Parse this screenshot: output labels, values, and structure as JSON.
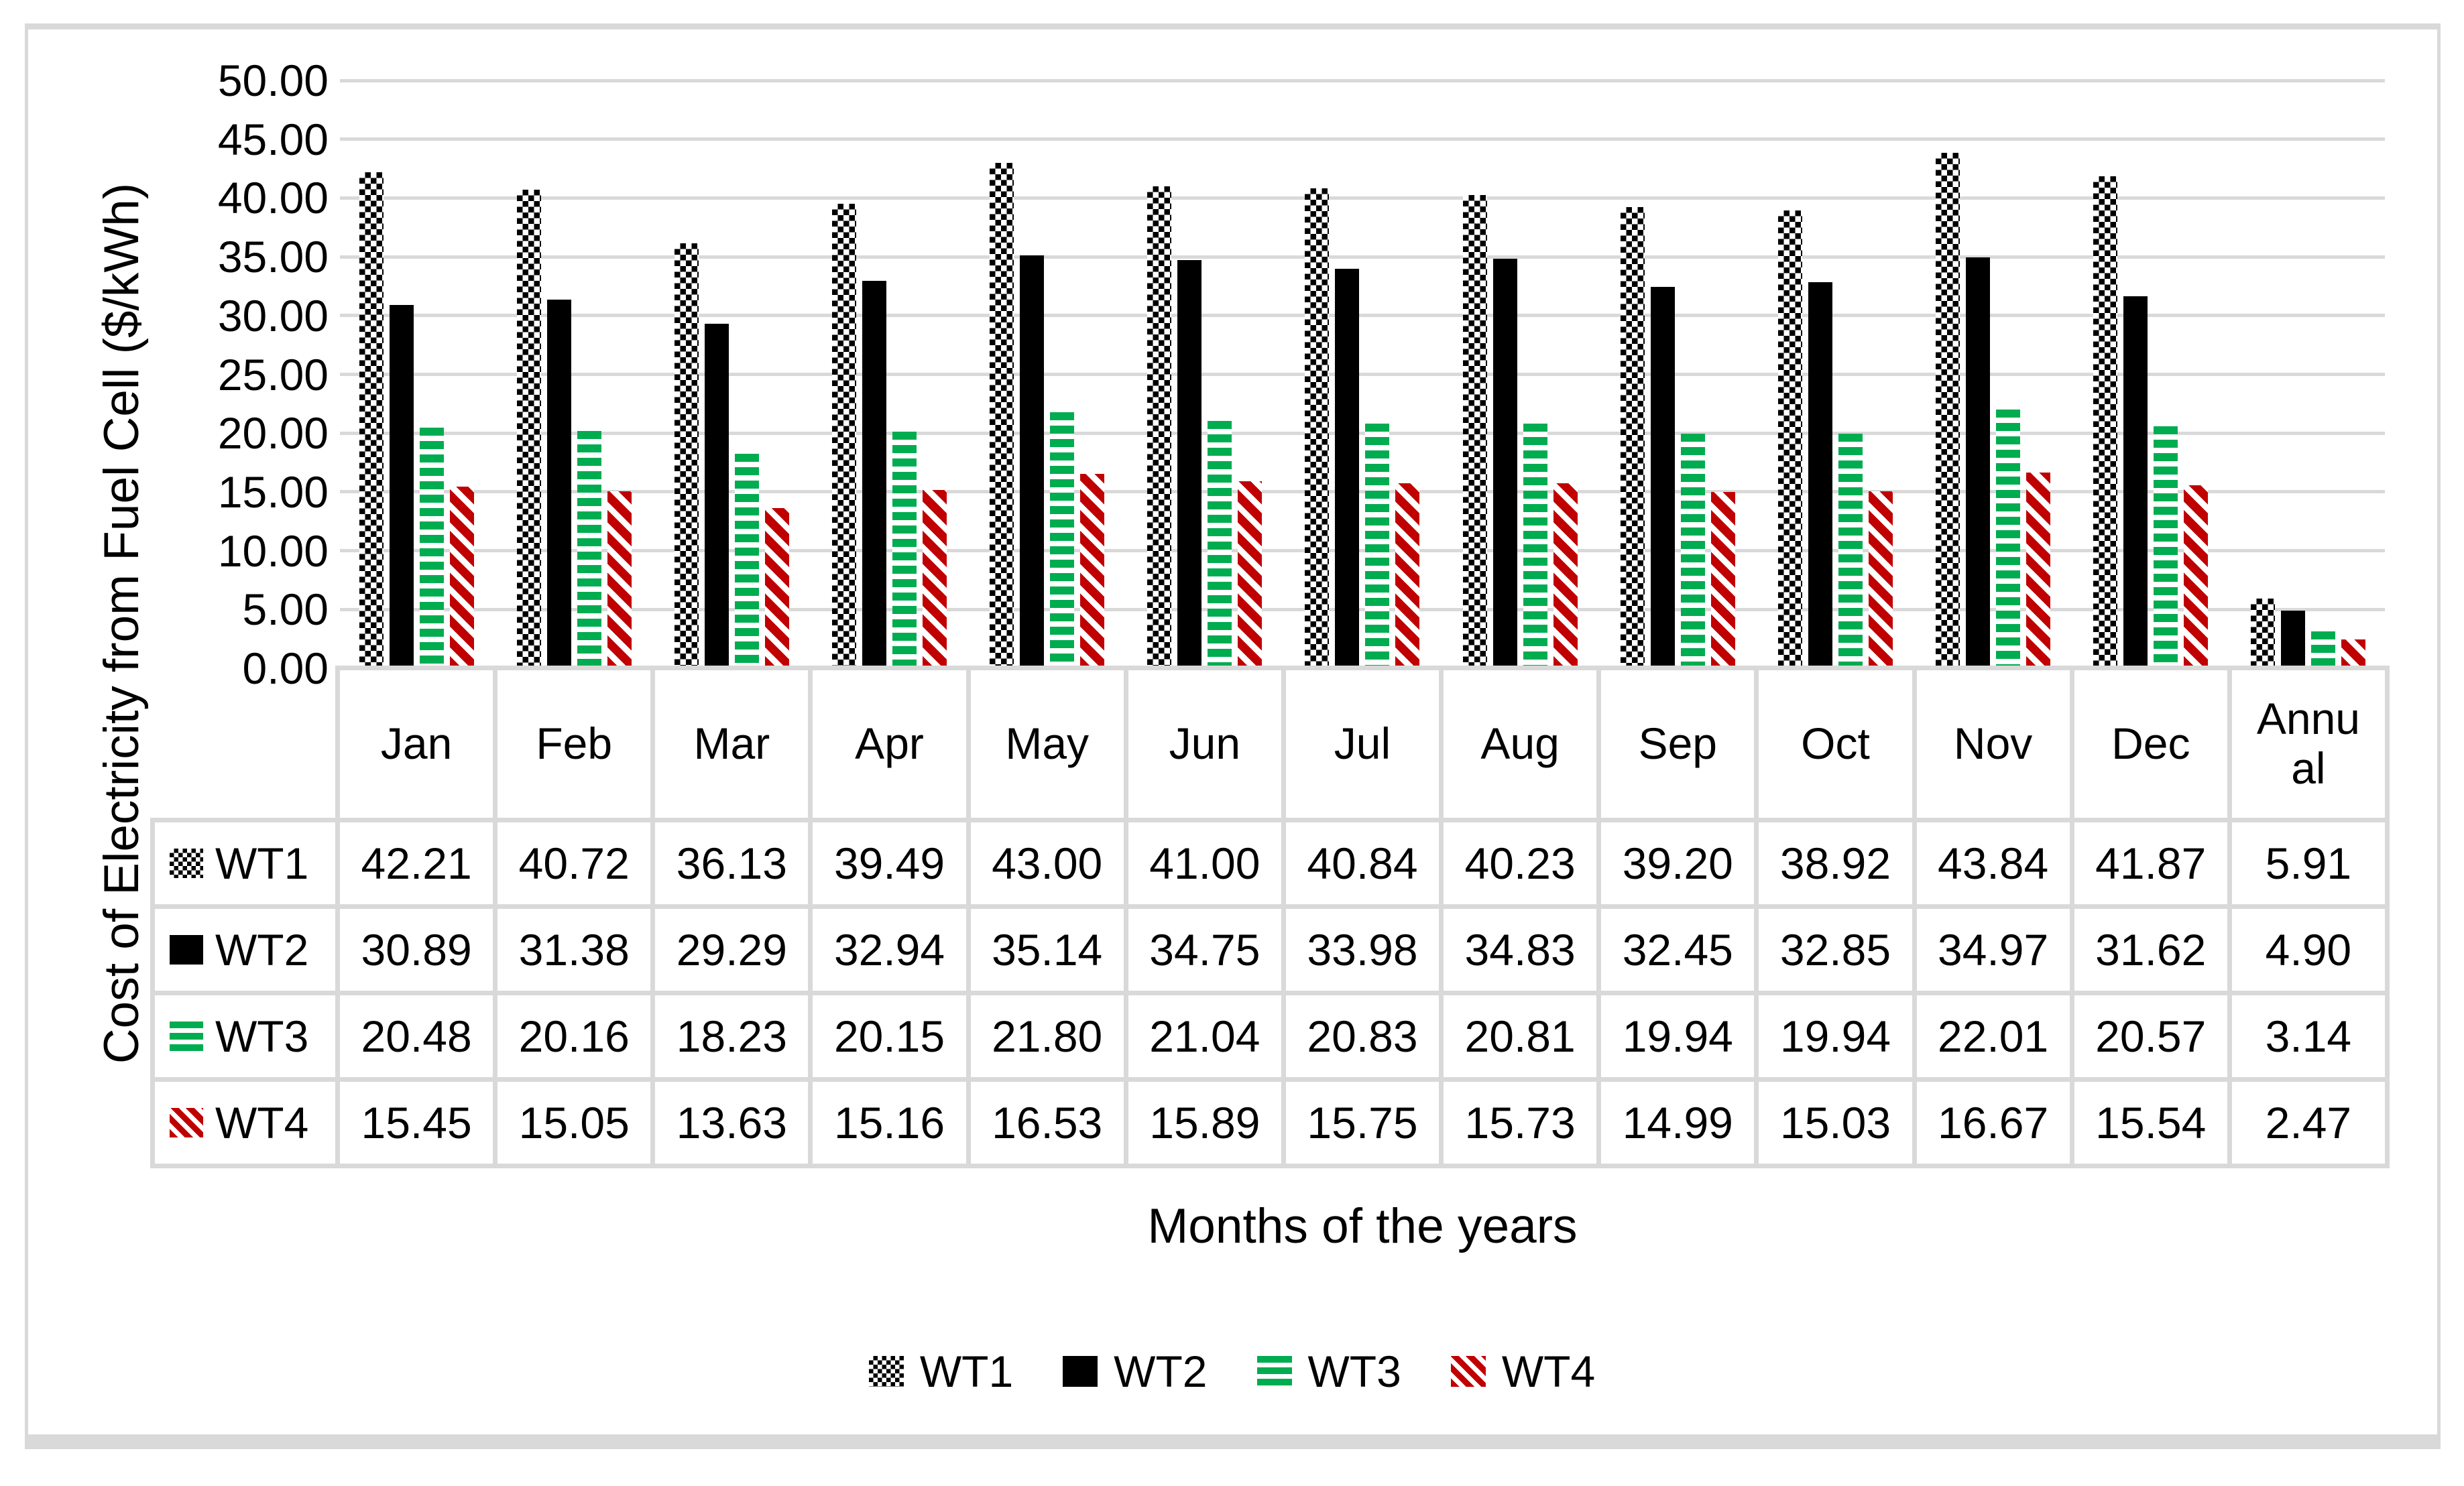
{
  "chart_data": {
    "type": "bar",
    "title": "",
    "xlabel": "Months of the years",
    "ylabel": "Cost of Electricity from Fuel Cell ($/kWh)",
    "ylim": [
      0,
      50
    ],
    "ytick_step": 5,
    "ytick_labels": [
      "0.00",
      "5.00",
      "10.00",
      "15.00",
      "20.00",
      "25.00",
      "30.00",
      "35.00",
      "40.00",
      "45.00",
      "50.00"
    ],
    "grid": true,
    "legend_position": "bottom",
    "data_table_shown": true,
    "categories": [
      "Jan",
      "Feb",
      "Mar",
      "Apr",
      "May",
      "Jun",
      "Jul",
      "Aug",
      "Sep",
      "Oct",
      "Nov",
      "Dec",
      "Annual"
    ],
    "series": [
      {
        "name": "WT1",
        "pattern": "checker",
        "color": "#000000",
        "values": [
          42.21,
          40.72,
          36.13,
          39.49,
          43.0,
          41.0,
          40.84,
          40.23,
          39.2,
          38.92,
          43.84,
          41.87,
          5.91
        ]
      },
      {
        "name": "WT2",
        "pattern": "solid",
        "color": "#000000",
        "values": [
          30.89,
          31.38,
          29.29,
          32.94,
          35.14,
          34.75,
          33.98,
          34.83,
          32.45,
          32.85,
          34.97,
          31.62,
          4.9
        ]
      },
      {
        "name": "WT3",
        "pattern": "hstripe",
        "color": "#00AC50",
        "values": [
          20.48,
          20.16,
          18.23,
          20.15,
          21.8,
          21.04,
          20.83,
          20.81,
          19.94,
          19.94,
          22.01,
          20.57,
          3.14
        ]
      },
      {
        "name": "WT4",
        "pattern": "dstripe",
        "color": "#C00000",
        "values": [
          15.45,
          15.05,
          13.63,
          15.16,
          16.53,
          15.89,
          15.75,
          15.73,
          14.99,
          15.03,
          16.67,
          15.54,
          2.47
        ]
      }
    ],
    "value_format": "2dp"
  },
  "table": {
    "col_headers": [
      "Jan",
      "Feb",
      "Mar",
      "Apr",
      "May",
      "Jun",
      "Jul",
      "Aug",
      "Sep",
      "Oct",
      "Nov",
      "Dec",
      "Annual"
    ],
    "row_headers": [
      "WT1",
      "WT2",
      "WT3",
      "WT4"
    ]
  },
  "legend": {
    "items": [
      "WT1",
      "WT2",
      "WT3",
      "WT4"
    ]
  },
  "colors": {
    "gridline": "#D9D9D9",
    "table_border": "#D9D9D9",
    "frame_border": "#D9D9D9",
    "wt3_green": "#00AC50",
    "wt4_red": "#C00000",
    "text": "#000000",
    "background": "#FFFFFF"
  }
}
